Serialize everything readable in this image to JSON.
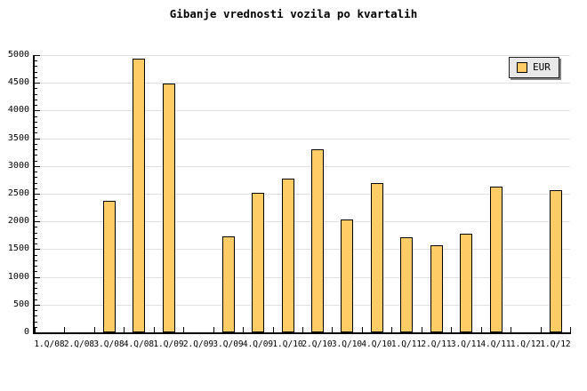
{
  "title": "Gibanje vrednosti vozila po kvartalih",
  "legend": {
    "items": [
      {
        "label": "EUR",
        "color": "#ffcc66"
      }
    ]
  },
  "colors": {
    "background": "#ffffff",
    "bar_fill": "#ffcc66",
    "bar_border": "#000000",
    "grid": "#e0e0e0",
    "axis": "#000000",
    "text": "#000000",
    "legend_bg": "#e8e8e8",
    "legend_border": "#222222",
    "legend_shadow": "#808080"
  },
  "chart_data": {
    "type": "bar",
    "title": "Gibanje vrednosti vozila po kvartalih",
    "categories": [
      "1.Q/08",
      "2.Q/08",
      "3.Q/08",
      "4.Q/08",
      "1.Q/09",
      "2.Q/09",
      "3.Q/09",
      "4.Q/09",
      "1.Q/10",
      "2.Q/10",
      "3.Q/10",
      "4.Q/10",
      "1.Q/11",
      "2.Q/11",
      "3.Q/11",
      "4.Q/11",
      "1.Q/12",
      "1.Q/12"
    ],
    "series": [
      {
        "name": "EUR",
        "values": [
          null,
          null,
          2370,
          4940,
          4480,
          null,
          1730,
          2510,
          2780,
          3300,
          2030,
          2690,
          1710,
          1570,
          1780,
          2630,
          null,
          2570
        ]
      }
    ],
    "xlabel": "",
    "ylabel": "",
    "ylim": [
      0,
      5000
    ],
    "ytick_step": 500,
    "yminor_step": 100,
    "yticks": [
      "0",
      "500",
      "1000",
      "1500",
      "2000",
      "2500",
      "3000",
      "3500",
      "4000",
      "4500",
      "5000"
    ],
    "grid": true,
    "legend_position": "top-right"
  }
}
